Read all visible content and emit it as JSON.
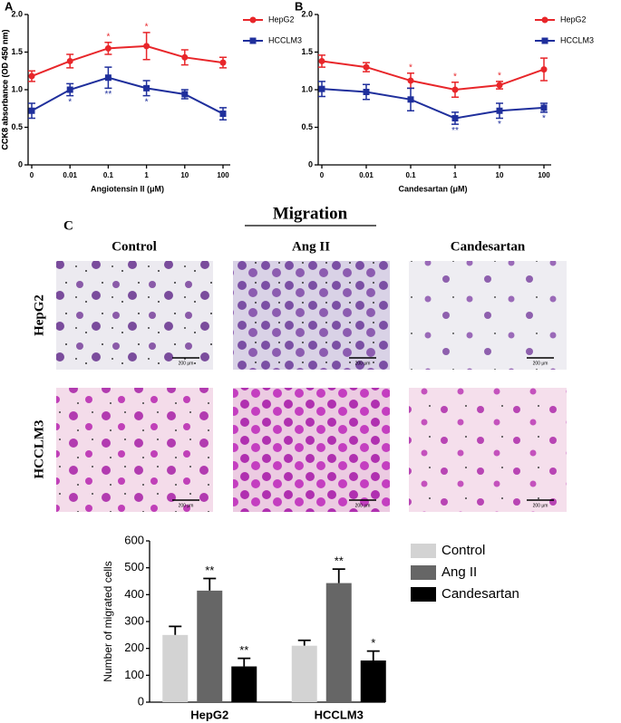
{
  "chart_data": [
    {
      "type": "line",
      "panel_label": "A",
      "xlabel": "Angiotensin II (μM)",
      "ylabel": "CCK8 absorbance (OD 450 nm)",
      "categories": [
        "0",
        "0.01",
        "0.1",
        "1",
        "10",
        "100"
      ],
      "ylim": [
        0,
        2
      ],
      "yticks": [
        0,
        0.5,
        {
          "value": 1,
          "label": "1.0"
        },
        {
          "value": 1.5,
          "label": "1.5"
        },
        {
          "value": 2,
          "label": "2.0"
        }
      ],
      "series": [
        {
          "name": "HepG2",
          "color": "#e8262a",
          "marker": "circle",
          "values": [
            1.18,
            1.38,
            1.55,
            1.58,
            1.43,
            1.36
          ],
          "errors": [
            0.07,
            0.09,
            0.08,
            0.18,
            0.1,
            0.07
          ],
          "annotations": [
            null,
            null,
            "*",
            "*",
            null,
            null
          ]
        },
        {
          "name": "HCCLM3",
          "color": "#1f2f9c",
          "marker": "square",
          "values": [
            0.72,
            1.0,
            1.16,
            1.02,
            0.94,
            0.68
          ],
          "errors": [
            0.1,
            0.08,
            0.14,
            0.1,
            0.06,
            0.08
          ],
          "annotations": [
            null,
            "*",
            "**",
            "*",
            null,
            null
          ]
        }
      ]
    },
    {
      "type": "line",
      "panel_label": "B",
      "xlabel": "Candesartan (μM)",
      "ylabel": "CCK8 absorbance (OD 450 nm)",
      "categories": [
        "0",
        "0.01",
        "0.1",
        "1",
        "10",
        "100"
      ],
      "ylim": [
        0,
        2
      ],
      "yticks": [
        0,
        0.5,
        {
          "value": 1,
          "label": "1.0"
        },
        {
          "value": 1.5,
          "label": "1.5"
        },
        {
          "value": 2,
          "label": "2.0"
        }
      ],
      "series": [
        {
          "name": "HepG2",
          "color": "#e8262a",
          "marker": "circle",
          "values": [
            1.38,
            1.3,
            1.12,
            1.0,
            1.06,
            1.27
          ],
          "errors": [
            0.08,
            0.06,
            0.1,
            0.1,
            0.05,
            0.15
          ],
          "annotations": [
            null,
            null,
            "*",
            "*",
            "*",
            null
          ]
        },
        {
          "name": "HCCLM3",
          "color": "#1f2f9c",
          "marker": "square",
          "values": [
            1.01,
            0.97,
            0.87,
            0.62,
            0.72,
            0.76
          ],
          "errors": [
            0.1,
            0.1,
            0.15,
            0.08,
            0.1,
            0.06
          ],
          "annotations": [
            null,
            null,
            null,
            "**",
            "*",
            "*"
          ]
        }
      ]
    },
    {
      "type": "bar",
      "ylabel": "Number of migrated cells",
      "categories": [
        "HepG2",
        "HCCLM3"
      ],
      "ylim": [
        0,
        600
      ],
      "yticks": [
        0,
        100,
        200,
        300,
        400,
        500,
        600
      ],
      "series": [
        {
          "name": "Control",
          "color": "#d3d3d3",
          "values": [
            250,
            210
          ],
          "errors": [
            32,
            20
          ],
          "annotations": [
            null,
            null
          ]
        },
        {
          "name": "Ang II",
          "color": "#666666",
          "values": [
            415,
            443
          ],
          "errors": [
            45,
            52
          ],
          "annotations": [
            "**",
            "**"
          ]
        },
        {
          "name": "Candesartan",
          "color": "#000000",
          "values": [
            133,
            155
          ],
          "errors": [
            30,
            35
          ],
          "annotations": [
            "**",
            "*"
          ]
        }
      ]
    }
  ],
  "figure_c": {
    "panel_label": "C",
    "title": "Migration",
    "columns": [
      "Control",
      "Ang II",
      "Candesartan"
    ],
    "rows": [
      "HepG2",
      "HCCLM3"
    ],
    "scale_bar": "200 μm"
  }
}
